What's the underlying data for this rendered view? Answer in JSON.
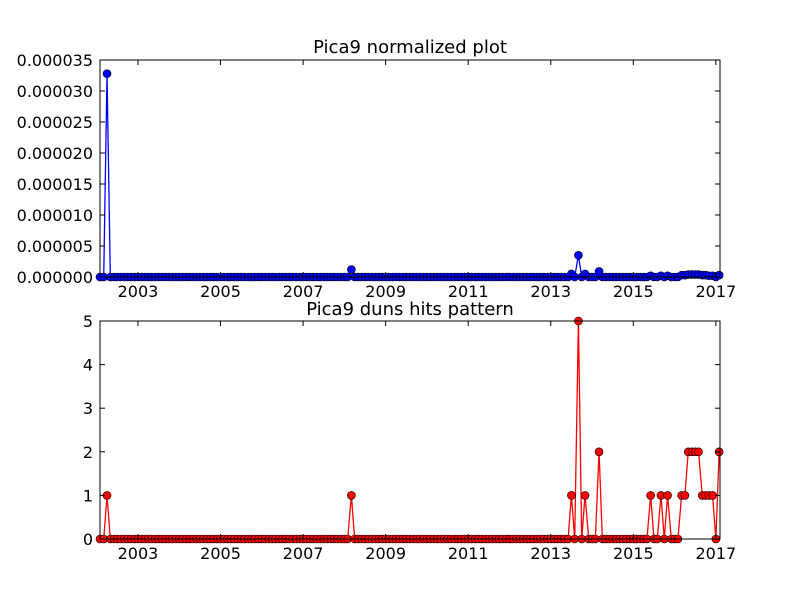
{
  "chart_data": [
    {
      "type": "line",
      "title": "Pica9 normalized plot",
      "xlabel": "",
      "ylabel": "",
      "xlim": [
        2002.08,
        2017.1
      ],
      "ylim": [
        0,
        3.5e-05
      ],
      "grid": false,
      "x_ticks": [
        2003,
        2005,
        2007,
        2009,
        2011,
        2013,
        2015,
        2017
      ],
      "y_ticks": [
        "0.000000",
        "0.000005",
        "0.000010",
        "0.000015",
        "0.000020",
        "0.000025",
        "0.000030",
        "0.000035"
      ],
      "line_color": "#0000ff",
      "marker_color": "#0000ff",
      "series": [
        {
          "x": [
            2002.25,
            2008.17,
            2013.5,
            2013.67,
            2013.83,
            2014.17,
            2015.42,
            2015.67,
            2015.83,
            2016.17,
            2016.25,
            2016.33,
            2016.42,
            2016.5,
            2016.58,
            2016.67,
            2016.75,
            2016.83,
            2016.92,
            2017.08
          ],
          "y": [
            3.28e-05,
            1.2e-06,
            5e-07,
            3.5e-06,
            5e-07,
            9e-07,
            2e-07,
            2e-07,
            2e-07,
            3e-07,
            3e-07,
            4e-07,
            4e-07,
            4e-07,
            4e-07,
            3e-07,
            3e-07,
            2e-07,
            2e-07,
            3e-07
          ]
        }
      ]
    },
    {
      "type": "line",
      "title": "Pica9 duns hits pattern",
      "xlabel": "",
      "ylabel": "",
      "xlim": [
        2002.08,
        2017.1
      ],
      "ylim": [
        0,
        5
      ],
      "grid": false,
      "x_ticks": [
        2003,
        2005,
        2007,
        2009,
        2011,
        2013,
        2015,
        2017
      ],
      "y_ticks": [
        "0",
        "1",
        "2",
        "3",
        "4",
        "5"
      ],
      "line_color": "#ff0000",
      "marker_color": "#ff0000",
      "series": [
        {
          "x": [
            2002.25,
            2008.17,
            2013.5,
            2013.67,
            2013.83,
            2014.17,
            2015.42,
            2015.67,
            2015.83,
            2016.17,
            2016.25,
            2016.33,
            2016.42,
            2016.5,
            2016.58,
            2016.67,
            2016.75,
            2016.83,
            2016.92,
            2017.08
          ],
          "y": [
            1,
            1,
            1,
            5,
            1,
            2,
            1,
            1,
            1,
            1,
            1,
            2,
            2,
            2,
            2,
            1,
            1,
            1,
            1,
            2
          ]
        }
      ]
    }
  ]
}
